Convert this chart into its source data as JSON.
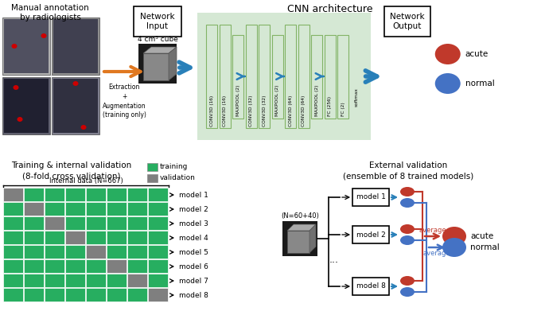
{
  "top_left_title": "Manual annotation\nby radiologists",
  "network_input_label": "Network\nInput",
  "cnn_arch_label": "CNN architecture",
  "network_output_label": "Network\nOutput",
  "cube_label": "4 cm³ cube",
  "extraction_label": "Extraction\n+\nAugmentation\n(training only)",
  "cnn_layers": [
    "CONV3D (16)",
    "CONV3D (16)",
    "MAXPOOL (2)",
    "CONV3D (32)",
    "CONV3D (32)",
    "MAXPOOL (2)",
    "CONV3D (64)",
    "CONV3D (64)",
    "MAXPOOL (2)",
    "FC (256)",
    "FC (2)",
    "softmax"
  ],
  "output_labels": [
    "acute",
    "normal"
  ],
  "output_colors": [
    "#c0392b",
    "#4472c4"
  ],
  "training_title": "Training & internal validation\n(8-fold cross validation)",
  "legend_labels": [
    "training",
    "validation"
  ],
  "legend_colors": [
    "#27ae60",
    "#808080"
  ],
  "internal_data_label": "Internal data (N=667)",
  "n_folds": 8,
  "n_cols": 8,
  "grid_green": "#27ae60",
  "grid_gray": "#7f7f7f",
  "model_labels": [
    "model 1",
    "model 2",
    "model 3",
    "model 4",
    "model 5",
    "model 6",
    "model 7",
    "model 8"
  ],
  "external_title": "External validation\n(ensemble of 8 trained models)",
  "external_n_label": "(N=60+40)",
  "arrow_orange": "#e07820",
  "arrow_blue": "#2980b9",
  "avg_red": "#c0392b",
  "avg_blue": "#4472c4",
  "bg_color": "#ffffff",
  "cnn_bg": "#d5e8d4",
  "cnn_border": "#82b366"
}
